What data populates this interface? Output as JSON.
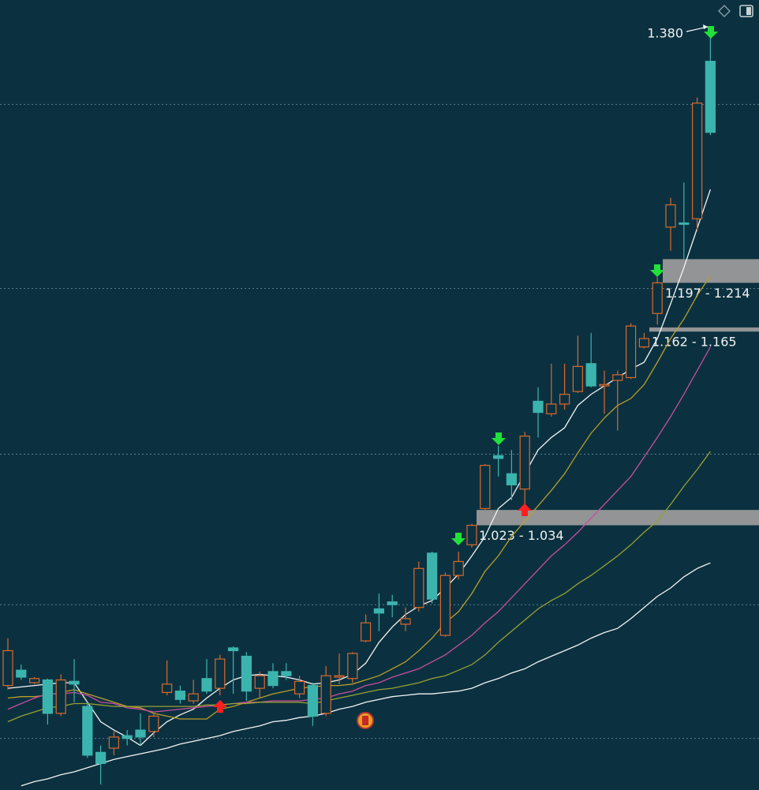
{
  "chart_data": {
    "type": "candlestick",
    "ylim": [
      0.833,
      1.4
    ],
    "grid_lines": [
      1.325,
      1.193,
      1.074,
      0.966,
      0.87
    ],
    "up_color": "#d8692c",
    "down_color": "#3cb4ae",
    "open": [
      0.908,
      0.919,
      0.91,
      0.912,
      0.888,
      0.911,
      0.893,
      0.86,
      0.863,
      0.872,
      0.876,
      0.875,
      0.903,
      0.904,
      0.897,
      0.913,
      0.906,
      0.935,
      0.929,
      0.906,
      0.918,
      0.918,
      0.902,
      0.908,
      0.888,
      0.914,
      0.913,
      0.94,
      0.963,
      0.968,
      0.952,
      0.964,
      1.003,
      0.944,
      0.987,
      1.009,
      1.035,
      1.073,
      1.06,
      1.049,
      1.112,
      1.103,
      1.11,
      1.119,
      1.139,
      1.123,
      1.127,
      1.129,
      1.151,
      1.175,
      1.237,
      1.24,
      1.243,
      1.356
    ],
    "high": [
      0.942,
      0.923,
      0.914,
      0.913,
      0.916,
      0.927,
      0.896,
      0.865,
      0.875,
      0.876,
      0.888,
      0.888,
      0.926,
      0.908,
      0.912,
      0.927,
      0.93,
      0.936,
      0.932,
      0.918,
      0.924,
      0.924,
      0.915,
      0.91,
      0.922,
      0.931,
      0.932,
      0.959,
      0.974,
      0.973,
      0.964,
      0.997,
      1.004,
      0.989,
      1.004,
      1.024,
      1.067,
      1.08,
      1.077,
      1.09,
      1.122,
      1.139,
      1.139,
      1.159,
      1.161,
      1.134,
      1.134,
      1.168,
      1.161,
      1.201,
      1.258,
      1.269,
      1.33,
      1.38
    ],
    "low": [
      0.905,
      0.912,
      0.909,
      0.88,
      0.886,
      0.896,
      0.856,
      0.837,
      0.858,
      0.865,
      0.865,
      0.871,
      0.901,
      0.895,
      0.895,
      0.902,
      0.901,
      0.902,
      0.897,
      0.899,
      0.906,
      0.912,
      0.899,
      0.879,
      0.886,
      0.909,
      0.91,
      0.939,
      0.947,
      0.957,
      0.947,
      0.961,
      0.967,
      0.943,
      0.984,
      1.007,
      1.034,
      1.058,
      1.041,
      1.035,
      1.086,
      1.101,
      1.106,
      1.118,
      1.122,
      1.103,
      1.091,
      1.128,
      1.15,
      1.167,
      1.22,
      1.214,
      1.234,
      1.303
    ],
    "close": [
      0.933,
      0.914,
      0.913,
      0.888,
      0.912,
      0.909,
      0.858,
      0.852,
      0.871,
      0.87,
      0.871,
      0.886,
      0.909,
      0.898,
      0.902,
      0.904,
      0.927,
      0.933,
      0.904,
      0.915,
      0.908,
      0.915,
      0.911,
      0.886,
      0.915,
      0.915,
      0.931,
      0.953,
      0.96,
      0.966,
      0.956,
      0.992,
      0.97,
      0.987,
      0.997,
      1.023,
      1.066,
      1.071,
      1.052,
      1.087,
      1.104,
      1.11,
      1.117,
      1.137,
      1.123,
      1.124,
      1.131,
      1.166,
      1.157,
      1.197,
      1.253,
      1.239,
      1.326,
      1.305
    ],
    "series": [
      {
        "color": "#f4f4f4",
        "values": [
          0.906,
          0.907,
          0.908,
          0.909,
          0.91,
          0.91,
          0.896,
          0.882,
          0.876,
          0.871,
          0.865,
          0.874,
          0.882,
          0.887,
          0.891,
          0.899,
          0.906,
          0.912,
          0.915,
          0.916,
          0.915,
          0.914,
          0.912,
          0.909,
          0.91,
          0.912,
          0.916,
          0.924,
          0.939,
          0.95,
          0.959,
          0.965,
          0.969,
          0.978,
          0.988,
          1.001,
          1.015,
          1.035,
          1.043,
          1.06,
          1.077,
          1.086,
          1.093,
          1.109,
          1.117,
          1.123,
          1.129,
          1.135,
          1.14,
          1.157,
          1.182,
          1.208,
          1.236,
          1.264
        ]
      },
      {
        "color": "#b89e2a",
        "values": [
          0.899,
          0.9,
          0.9,
          0.901,
          0.903,
          0.905,
          0.902,
          0.899,
          0.896,
          0.893,
          0.892,
          0.888,
          0.886,
          0.884,
          0.884,
          0.884,
          0.891,
          0.893,
          0.896,
          0.899,
          0.902,
          0.904,
          0.906,
          0.907,
          0.908,
          0.908,
          0.909,
          0.912,
          0.915,
          0.92,
          0.925,
          0.933,
          0.942,
          0.953,
          0.961,
          0.974,
          0.99,
          1.001,
          1.015,
          1.026,
          1.037,
          1.048,
          1.06,
          1.075,
          1.089,
          1.1,
          1.109,
          1.114,
          1.124,
          1.14,
          1.157,
          1.171,
          1.188,
          1.202
        ]
      },
      {
        "color": "#c94d9e",
        "values": [
          0.891,
          0.895,
          0.899,
          0.902,
          0.902,
          0.903,
          0.901,
          0.896,
          0.895,
          0.892,
          0.891,
          0.889,
          0.89,
          0.891,
          0.892,
          0.893,
          0.894,
          0.895,
          0.896,
          0.896,
          0.897,
          0.897,
          0.897,
          0.898,
          0.899,
          0.902,
          0.904,
          0.908,
          0.91,
          0.914,
          0.917,
          0.92,
          0.925,
          0.93,
          0.937,
          0.944,
          0.953,
          0.961,
          0.971,
          0.981,
          0.991,
          1.001,
          1.009,
          1.018,
          1.028,
          1.038,
          1.048,
          1.058,
          1.072,
          1.086,
          1.101,
          1.117,
          1.134,
          1.151
        ]
      },
      {
        "color": "#98a032",
        "values": [
          0.882,
          0.886,
          0.889,
          0.892,
          0.893,
          0.895,
          0.895,
          0.894,
          0.893,
          0.893,
          0.893,
          0.893,
          0.893,
          0.893,
          0.893,
          0.894,
          0.894,
          0.895,
          0.895,
          0.896,
          0.896,
          0.896,
          0.896,
          0.895,
          0.897,
          0.899,
          0.901,
          0.903,
          0.905,
          0.906,
          0.908,
          0.91,
          0.913,
          0.915,
          0.919,
          0.923,
          0.93,
          0.939,
          0.947,
          0.955,
          0.963,
          0.969,
          0.974,
          0.981,
          0.987,
          0.994,
          1.001,
          1.009,
          1.018,
          1.026,
          1.038,
          1.051,
          1.063,
          1.076
        ]
      },
      {
        "color": "#f4f4f4",
        "values": [
          null,
          0.836,
          0.839,
          0.841,
          0.844,
          0.846,
          0.849,
          0.852,
          0.855,
          0.857,
          0.859,
          0.861,
          0.863,
          0.866,
          0.868,
          0.87,
          0.872,
          0.875,
          0.877,
          0.879,
          0.882,
          0.883,
          0.885,
          0.886,
          0.888,
          0.891,
          0.893,
          0.896,
          0.898,
          0.9,
          0.901,
          0.902,
          0.902,
          0.903,
          0.904,
          0.906,
          0.91,
          0.913,
          0.917,
          0.92,
          0.925,
          0.929,
          0.933,
          0.937,
          0.942,
          0.946,
          0.949,
          0.956,
          0.964,
          0.972,
          0.978,
          0.986,
          0.992,
          0.996
        ]
      }
    ],
    "zones": [
      {
        "label": "1.023 - 1.034",
        "low": 1.023,
        "high": 1.034
      },
      {
        "label": "1.197 - 1.214",
        "low": 1.197,
        "high": 1.214
      },
      {
        "label": "1.162 - 1.165",
        "low": 1.162,
        "high": 1.165
      }
    ],
    "annotations": [
      {
        "text": "1.380"
      }
    ]
  }
}
